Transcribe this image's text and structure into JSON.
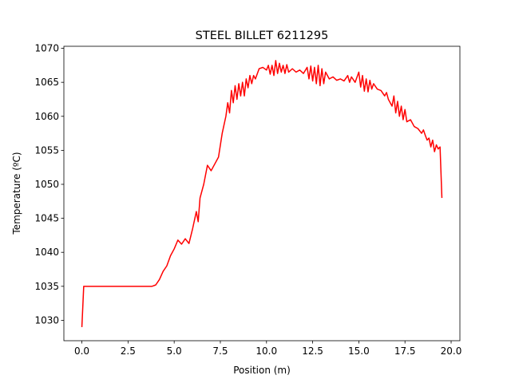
{
  "chart_data": {
    "type": "line",
    "title": "STEEL BILLET 6211295",
    "x_label": "Position (m)",
    "y_label": "Temperature (ºC)",
    "x": [
      0,
      0.1,
      3.8,
      4.0,
      4.2,
      4.4,
      4.6,
      4.8,
      5.0,
      5.2,
      5.4,
      5.6,
      5.8,
      6.0,
      6.2,
      6.3,
      6.4,
      6.6,
      6.8,
      7.0,
      7.2,
      7.4,
      7.6,
      7.8,
      7.9,
      8.0,
      8.1,
      8.2,
      8.3,
      8.4,
      8.5,
      8.6,
      8.7,
      8.8,
      8.9,
      9.0,
      9.1,
      9.2,
      9.3,
      9.4,
      9.6,
      9.8,
      10.0,
      10.1,
      10.2,
      10.3,
      10.4,
      10.5,
      10.6,
      10.7,
      10.8,
      10.9,
      11.0,
      11.1,
      11.2,
      11.4,
      11.6,
      11.8,
      12.0,
      12.2,
      12.3,
      12.4,
      12.5,
      12.6,
      12.7,
      12.8,
      12.9,
      13.0,
      13.1,
      13.2,
      13.4,
      13.6,
      13.8,
      14.0,
      14.2,
      14.4,
      14.5,
      14.6,
      14.8,
      15.0,
      15.1,
      15.2,
      15.3,
      15.4,
      15.5,
      15.6,
      15.7,
      15.8,
      16.0,
      16.2,
      16.4,
      16.5,
      16.6,
      16.8,
      16.9,
      17.0,
      17.1,
      17.2,
      17.3,
      17.4,
      17.5,
      17.6,
      17.8,
      18.0,
      18.2,
      18.4,
      18.5,
      18.6,
      18.7,
      18.8,
      18.9,
      19.0,
      19.1,
      19.2,
      19.3,
      19.4,
      19.5
    ],
    "series": [
      {
        "color": "#ff0000",
        "values": [
          1029,
          1035,
          1035,
          1035.2,
          1036,
          1037.2,
          1038,
          1039.5,
          1040.5,
          1041.8,
          1041.2,
          1042,
          1041.3,
          1043.5,
          1046,
          1044.5,
          1048,
          1050,
          1052.8,
          1052,
          1053,
          1054,
          1057.5,
          1060,
          1062,
          1060.5,
          1063.8,
          1062,
          1064.5,
          1062.5,
          1064.8,
          1063,
          1065,
          1063,
          1065.5,
          1064.2,
          1066,
          1064.8,
          1066,
          1065.5,
          1067,
          1067.2,
          1066.8,
          1067.5,
          1066.2,
          1067.5,
          1066,
          1068.2,
          1066.3,
          1067.8,
          1066.5,
          1067.5,
          1066.3,
          1067.6,
          1066.5,
          1067,
          1066.5,
          1066.8,
          1066.3,
          1067.2,
          1065.5,
          1067.4,
          1065.2,
          1067.2,
          1064.8,
          1067.5,
          1064.5,
          1067,
          1064.8,
          1066.5,
          1065.5,
          1065.8,
          1065.3,
          1065.5,
          1065.2,
          1066,
          1065,
          1065.8,
          1065,
          1066.5,
          1064.3,
          1066,
          1063.7,
          1065.5,
          1063.6,
          1065.3,
          1064,
          1064.8,
          1064,
          1063.8,
          1063,
          1063.5,
          1062.5,
          1061.5,
          1063,
          1060.5,
          1062.2,
          1060,
          1061.5,
          1059.5,
          1061,
          1059.2,
          1059.5,
          1058.5,
          1058.2,
          1057.5,
          1058,
          1057.2,
          1056.5,
          1056.8,
          1055.5,
          1056.5,
          1054.8,
          1055.8,
          1055.2,
          1055.5,
          1048
        ]
      }
    ],
    "xlim": [
      -0.975,
      20.475
    ],
    "ylim": [
      1027.0,
      1070.3
    ],
    "xticks": [
      {
        "value": 0,
        "label": "0.0"
      },
      2.5,
      {
        "value": 5,
        "label": "5.0"
      },
      7.5,
      {
        "value": 10,
        "label": "10.0"
      },
      12.5,
      {
        "value": 15,
        "label": "15.0"
      },
      17.5,
      {
        "value": 20,
        "label": "20.0"
      }
    ],
    "yticks": [
      1030,
      1035,
      1040,
      1045,
      1050,
      1055,
      1060,
      1065,
      1070
    ]
  }
}
